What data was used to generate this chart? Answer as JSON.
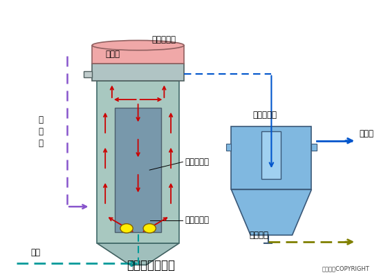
{
  "title": "气流动力流化床",
  "copyright": "东方仿真COPYRIGHT",
  "labels": {
    "sulfur_bed": "硫化床",
    "carrier_sep": "载体分离区",
    "secondary_sed": "二次沉淀齿",
    "treated_water": "处理水",
    "sludge_discharge": "污泥排放",
    "carrier_down": "载体下降区",
    "transport_tube": "输送混合管",
    "raw_sewage": "原\n污\n水",
    "air": "空气"
  },
  "arrows": {
    "red_color": "#cc0000",
    "blue_color": "#0055cc",
    "purple_color": "#8855cc",
    "teal_color": "#009999",
    "olive_color": "#808000"
  },
  "background_color": "#ffffff"
}
